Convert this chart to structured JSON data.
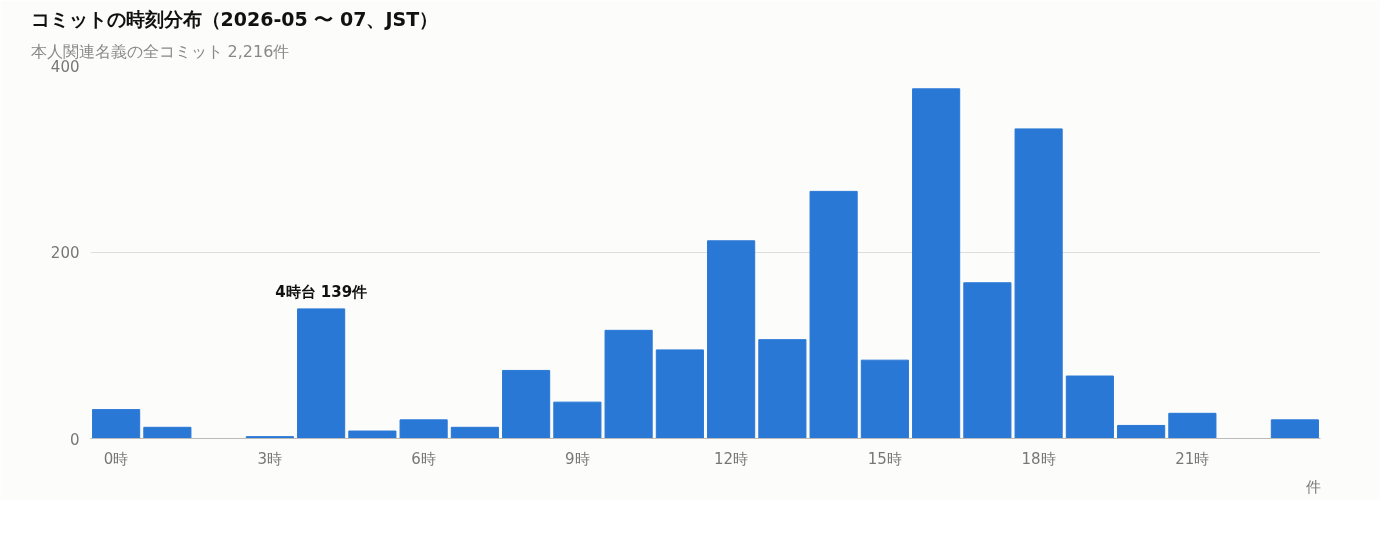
{
  "chart_data": {
    "type": "bar",
    "title": "コミットの時刻分布（2026-05 〜 07、JST）",
    "subtitle": "本人関連名義の全コミット 2,216件",
    "annotations": [
      "件"
    ],
    "categories": [
      "0時",
      null,
      null,
      "3時",
      null,
      null,
      "6時",
      null,
      null,
      "9時",
      null,
      null,
      "12時",
      null,
      null,
      "15時",
      null,
      null,
      "18時",
      null,
      null,
      "21時",
      null,
      null
    ],
    "values": [
      31,
      12,
      0,
      2,
      139,
      8,
      20,
      12,
      73,
      39,
      116,
      95,
      212,
      106,
      265,
      84,
      375,
      167,
      332,
      67,
      14,
      27,
      0,
      20
    ],
    "value_labels": [
      null,
      null,
      null,
      null,
      "4時台 139件",
      null,
      null,
      null,
      null,
      null,
      null,
      null,
      null,
      null,
      null,
      null,
      null,
      null,
      null,
      null,
      null,
      null,
      null,
      null
    ],
    "color": "#2a78d6",
    "ylim": [
      0,
      400
    ],
    "yticks": [
      0,
      200,
      400
    ],
    "grid": "y"
  }
}
